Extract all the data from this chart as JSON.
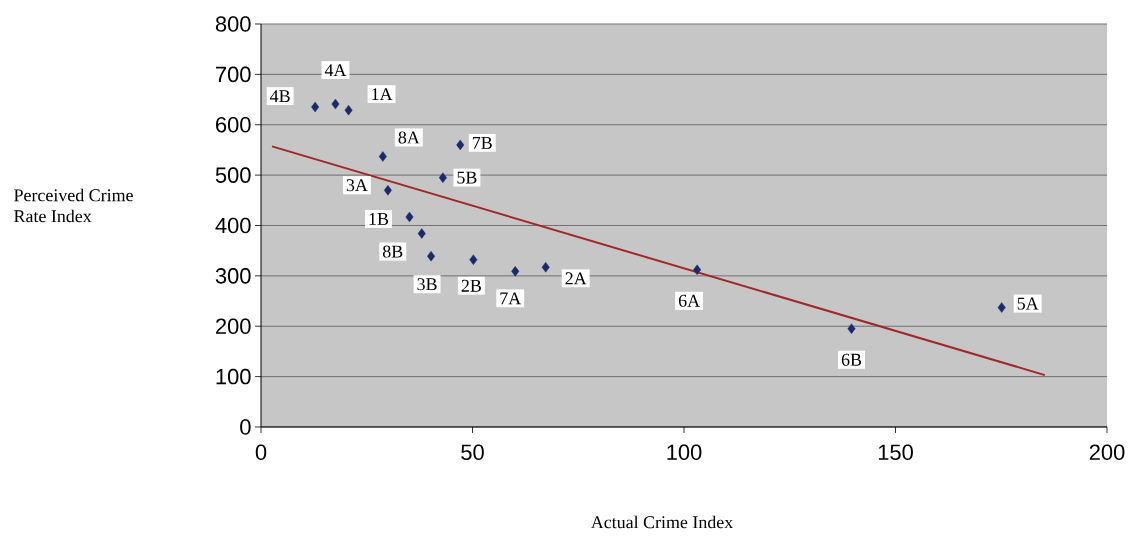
{
  "chart_data": {
    "type": "scatter",
    "xlabel": "Actual Crime Index",
    "ylabel": "Perceived Crime Rate Index",
    "xlim": [
      0,
      200
    ],
    "xticks": [
      0,
      50,
      100,
      150,
      200
    ],
    "ylim": [
      0,
      800
    ],
    "yticks": [
      0,
      100,
      200,
      300,
      400,
      500,
      600,
      700,
      800
    ],
    "grid": "y",
    "series": [
      {
        "marker": "diamond",
        "color": "#1a2a6c",
        "x": [
          12.8,
          17.6,
          20.7,
          28.8,
          47.1,
          43,
          30,
          35.1,
          38,
          40.2,
          50.2,
          60.1,
          67.3,
          103.1,
          139.6,
          175.1
        ],
        "values": [
          635,
          641,
          629,
          537,
          560,
          495,
          470,
          417,
          384,
          339,
          332,
          309,
          317,
          312,
          195,
          237
        ]
      },
      {
        "type": "line",
        "color": "#a0282a",
        "x": [
          2.6,
          185.3
        ],
        "values": [
          557,
          103
        ]
      }
    ],
    "annotations": [
      {
        "text": "4B",
        "x": 12.8,
        "y": 635
      },
      {
        "text": "4A",
        "x": 17.6,
        "y": 641
      },
      {
        "text": "1A",
        "x": 20.7,
        "y": 629
      },
      {
        "text": "8A",
        "x": 28.8,
        "y": 537
      },
      {
        "text": "7B",
        "x": 47.1,
        "y": 560
      },
      {
        "text": "5B",
        "x": 43,
        "y": 495
      },
      {
        "text": "3A",
        "x": 30,
        "y": 470
      },
      {
        "text": "1B",
        "x": 35.1,
        "y": 417
      },
      {
        "text": "8B",
        "x": 38,
        "y": 384
      },
      {
        "text": "3B",
        "x": 40.2,
        "y": 339
      },
      {
        "text": "2B",
        "x": 50.2,
        "y": 332
      },
      {
        "text": "7A",
        "x": 60.1,
        "y": 309
      },
      {
        "text": "2A",
        "x": 67.3,
        "y": 317
      },
      {
        "text": "6A",
        "x": 103.1,
        "y": 312
      },
      {
        "text": "6B",
        "x": 139.6,
        "y": 195
      },
      {
        "text": "5A",
        "x": 175.1,
        "y": 237
      }
    ]
  }
}
